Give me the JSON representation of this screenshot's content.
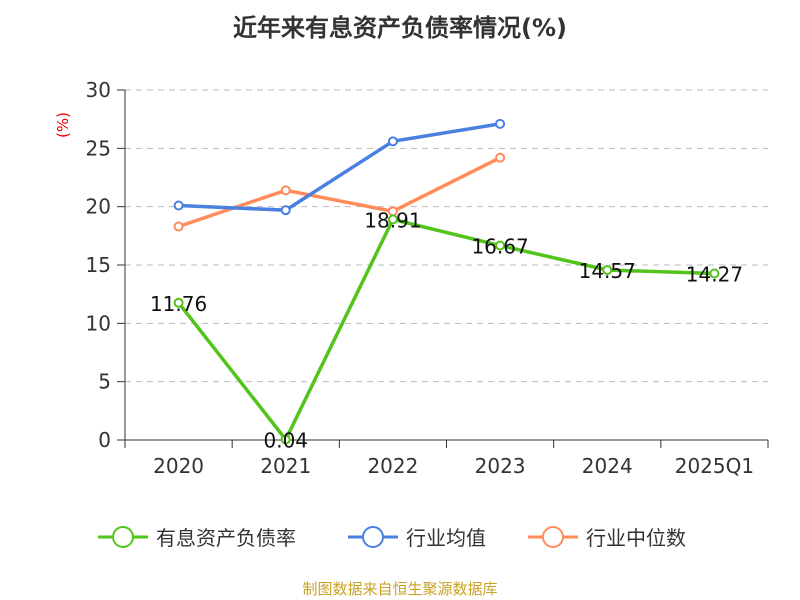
{
  "chart_data": {
    "type": "line",
    "title": "近年来有息资产负债率情况(%)",
    "ylabel": "(%)",
    "xlabel": "",
    "categories": [
      "2020",
      "2021",
      "2022",
      "2023",
      "2024",
      "2025Q1"
    ],
    "ylim": [
      0,
      30
    ],
    "yticks": [
      0,
      5,
      10,
      15,
      20,
      25,
      30
    ],
    "grid": true,
    "legend_position": "bottom",
    "series": [
      {
        "name": "有息资产负债率",
        "color": "#52c41a",
        "values": [
          11.76,
          0.04,
          18.91,
          16.67,
          14.57,
          14.27
        ],
        "labels": [
          "11.76",
          "0.04",
          "18.91",
          "16.67",
          "14.57",
          "14.27"
        ]
      },
      {
        "name": "行业均值",
        "color": "#4a80e0",
        "values": [
          20.1,
          19.7,
          25.6,
          27.1,
          null,
          null
        ]
      },
      {
        "name": "行业中位数",
        "color": "#ff8c5a",
        "values": [
          18.3,
          21.4,
          19.6,
          24.2,
          null,
          null
        ]
      }
    ],
    "source": "制图数据来自恒生聚源数据库"
  }
}
